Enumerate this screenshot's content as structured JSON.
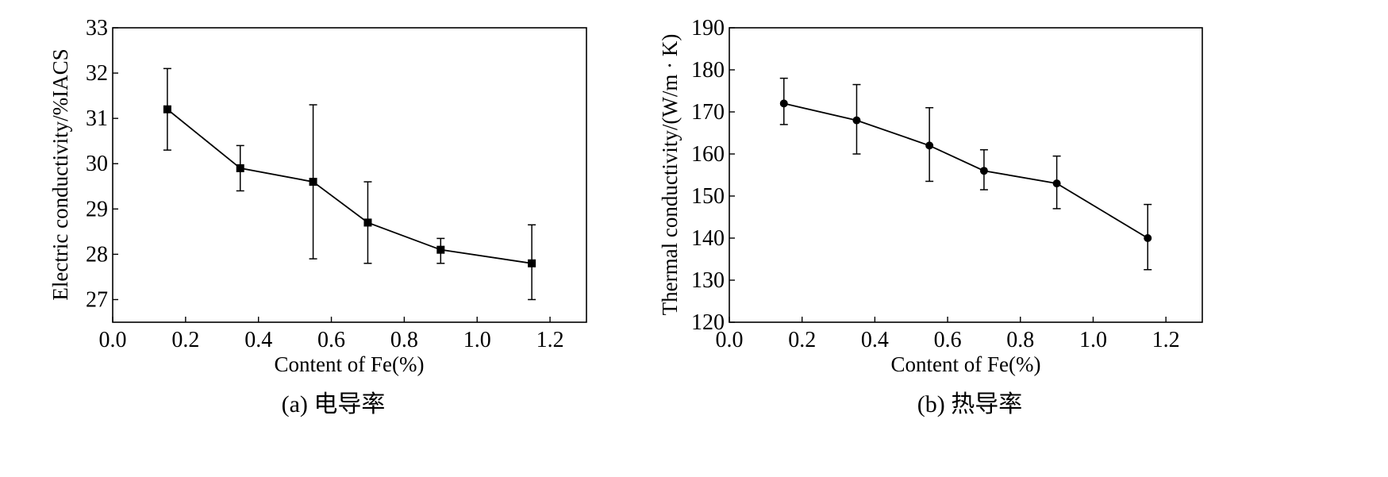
{
  "chart_data": [
    {
      "type": "line",
      "xlabel": "Content of Fe(%)",
      "ylabel": "Electric conductivity/%IACS",
      "caption": "(a) 电导率",
      "xlim": [
        0.0,
        1.3
      ],
      "ylim": [
        26.5,
        33
      ],
      "xticks": [
        "0.0",
        "0.2",
        "0.4",
        "0.6",
        "0.8",
        "1.0",
        "1.2"
      ],
      "yticks": [
        "27",
        "28",
        "29",
        "30",
        "31",
        "32",
        "33"
      ],
      "marker": "square",
      "grid": false,
      "series": [
        {
          "x": [
            0.15,
            0.35,
            0.55,
            0.7,
            0.9,
            1.15
          ],
          "y": [
            31.2,
            29.9,
            29.6,
            28.7,
            28.1,
            27.8
          ],
          "err_low": [
            30.3,
            29.4,
            27.9,
            27.8,
            27.8,
            27.0
          ],
          "err_high": [
            32.1,
            30.4,
            31.3,
            29.6,
            28.35,
            28.65
          ]
        }
      ]
    },
    {
      "type": "line",
      "xlabel": "Content of Fe(%)",
      "ylabel": "Thermal conductivity/(W/m · K)",
      "caption": "(b) 热导率",
      "xlim": [
        0.0,
        1.3
      ],
      "ylim": [
        120,
        190
      ],
      "xticks": [
        "0.0",
        "0.2",
        "0.4",
        "0.6",
        "0.8",
        "1.0",
        "1.2"
      ],
      "yticks": [
        "120",
        "130",
        "140",
        "150",
        "160",
        "170",
        "180",
        "190"
      ],
      "marker": "circle",
      "grid": false,
      "series": [
        {
          "x": [
            0.15,
            0.35,
            0.55,
            0.7,
            0.9,
            1.15
          ],
          "y": [
            172,
            168,
            162,
            156,
            153,
            140
          ],
          "err_low": [
            167,
            160,
            153.5,
            151.5,
            147,
            132.5
          ],
          "err_high": [
            178,
            176.5,
            171,
            161,
            159.5,
            148
          ]
        }
      ]
    }
  ]
}
